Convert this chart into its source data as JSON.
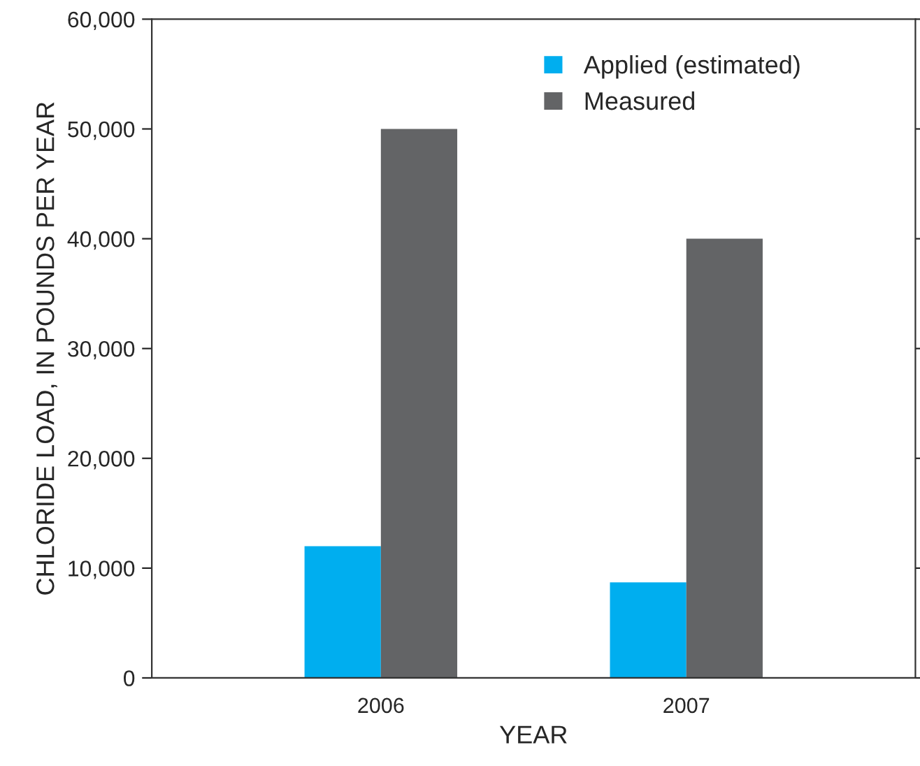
{
  "chart_data": {
    "type": "bar",
    "xlabel": "YEAR",
    "ylabel": "CHLORIDE LOAD, IN POUNDS PER YEAR",
    "categories": [
      "2006",
      "2007"
    ],
    "series": [
      {
        "name": "Applied (estimated)",
        "color": "#00aeef",
        "values": [
          12000,
          8700
        ]
      },
      {
        "name": "Measured",
        "color": "#636466",
        "values": [
          50000,
          40000
        ]
      }
    ],
    "ylim": [
      0,
      60000
    ],
    "yticks": [
      {
        "value": 0,
        "label": "0"
      },
      {
        "value": 10000,
        "label": "10,000"
      },
      {
        "value": 20000,
        "label": "20,000"
      },
      {
        "value": 30000,
        "label": "30,000"
      },
      {
        "value": 40000,
        "label": "40,000"
      },
      {
        "value": 50000,
        "label": "50,000"
      },
      {
        "value": 60000,
        "label": "60,000"
      }
    ],
    "grid": false,
    "legend": "top right"
  }
}
